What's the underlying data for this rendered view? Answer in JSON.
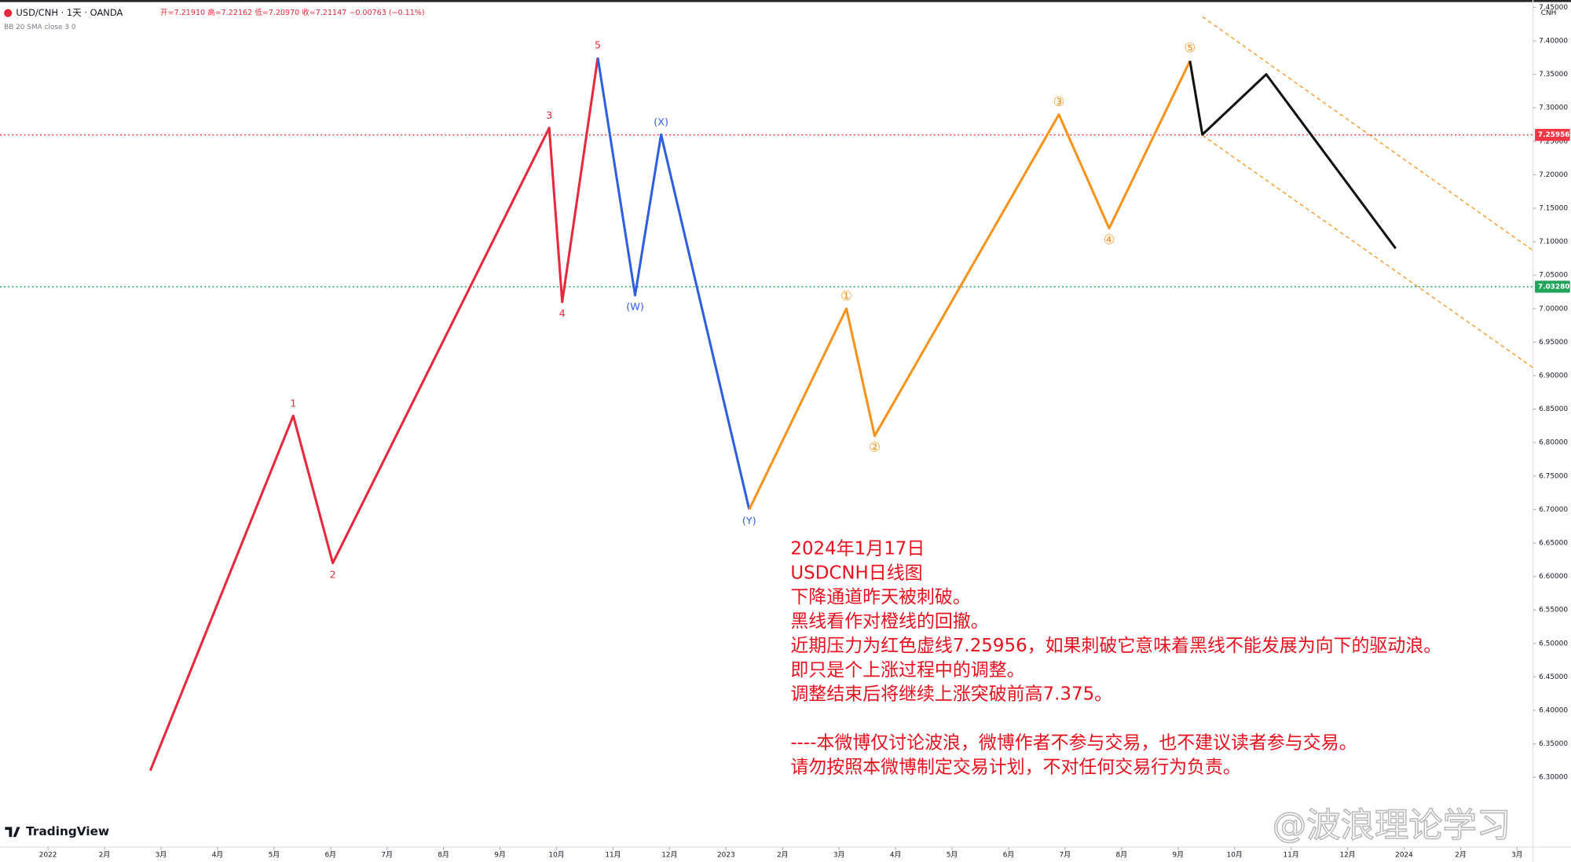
{
  "chart_data": {
    "type": "line",
    "header": "USD/CNH · 1天 · OANDA",
    "ohlc_text": "开=7.21910 高=7.22162 低=7.20970 收=7.21147 −0.00763 (−0.11%)",
    "indicator": "BB 20 SMA close 3 0",
    "y_axis_label": "CNH",
    "xlim": [
      -0.85,
      26.28
    ],
    "xticks": [
      {
        "value": 0,
        "label": "2022"
      },
      {
        "value": 1,
        "label": "2月"
      },
      {
        "value": 2,
        "label": "3月"
      },
      {
        "value": 3,
        "label": "4月"
      },
      {
        "value": 4,
        "label": "5月"
      },
      {
        "value": 5,
        "label": "6月"
      },
      {
        "value": 6,
        "label": "7月"
      },
      {
        "value": 7,
        "label": "8月"
      },
      {
        "value": 8,
        "label": "9月"
      },
      {
        "value": 9,
        "label": "10月"
      },
      {
        "value": 10,
        "label": "11月"
      },
      {
        "value": 11,
        "label": "12月"
      },
      {
        "value": 12,
        "label": "2023"
      },
      {
        "value": 13,
        "label": "2月"
      },
      {
        "value": 14,
        "label": "3月"
      },
      {
        "value": 15,
        "label": "4月"
      },
      {
        "value": 16,
        "label": "5月"
      },
      {
        "value": 17,
        "label": "6月"
      },
      {
        "value": 18,
        "label": "7月"
      },
      {
        "value": 19,
        "label": "8月"
      },
      {
        "value": 20,
        "label": "9月"
      },
      {
        "value": 21,
        "label": "10月"
      },
      {
        "value": 22,
        "label": "11月"
      },
      {
        "value": 23,
        "label": "12月"
      },
      {
        "value": 24,
        "label": "2024"
      },
      {
        "value": 25,
        "label": "2月"
      },
      {
        "value": 26,
        "label": "3月"
      }
    ],
    "ylim": [
      6.196,
      7.461
    ],
    "yticks": [
      {
        "value": 6.3,
        "label": "6.30000"
      },
      {
        "value": 6.35,
        "label": "6.35000"
      },
      {
        "value": 6.4,
        "label": "6.40000"
      },
      {
        "value": 6.45,
        "label": "6.45000"
      },
      {
        "value": 6.5,
        "label": "6.50000"
      },
      {
        "value": 6.55,
        "label": "6.55000"
      },
      {
        "value": 6.6,
        "label": "6.60000"
      },
      {
        "value": 6.65,
        "label": "6.65000"
      },
      {
        "value": 6.7,
        "label": "6.70000"
      },
      {
        "value": 6.75,
        "label": "6.75000"
      },
      {
        "value": 6.8,
        "label": "6.80000"
      },
      {
        "value": 6.85,
        "label": "6.85000"
      },
      {
        "value": 6.9,
        "label": "6.90000"
      },
      {
        "value": 6.95,
        "label": "6.95000"
      },
      {
        "value": 7.0,
        "label": "7.00000"
      },
      {
        "value": 7.05,
        "label": "7.05000"
      },
      {
        "value": 7.1,
        "label": "7.10000"
      },
      {
        "value": 7.15,
        "label": "7.15000"
      },
      {
        "value": 7.2,
        "label": "7.20000"
      },
      {
        "value": 7.25,
        "label": "7.25000"
      },
      {
        "value": 7.3,
        "label": "7.30000"
      },
      {
        "value": 7.35,
        "label": "7.35000"
      },
      {
        "value": 7.4,
        "label": "7.40000"
      },
      {
        "value": 7.45,
        "label": "7.45000"
      }
    ],
    "levels": [
      {
        "value": 7.25956,
        "label": "7.25956",
        "color": "#f23645"
      },
      {
        "value": 7.0328,
        "label": "7.03280",
        "color": "#22a55b"
      }
    ],
    "series": [
      {
        "color": "#e8283c",
        "x": [
          1.81,
          4.34,
          5.04,
          8.87,
          9.1,
          9.73
        ],
        "values": [
          6.31,
          6.84,
          6.62,
          7.27,
          7.01,
          7.375
        ],
        "point_labels": [
          null,
          "1",
          "2",
          "3",
          "4",
          "5"
        ]
      },
      {
        "color": "#2f5fe0",
        "x": [
          9.73,
          10.39,
          10.85,
          12.41
        ],
        "values": [
          7.375,
          7.02,
          7.26,
          6.7
        ],
        "point_labels": [
          null,
          "(W)",
          "(X)",
          "(Y)"
        ]
      },
      {
        "color": "#f7931a",
        "x": [
          12.41,
          14.13,
          14.63,
          17.89,
          18.78,
          20.21
        ],
        "values": [
          6.7,
          7.0,
          6.81,
          7.29,
          7.12,
          7.37
        ],
        "point_labels": [
          null,
          "①",
          "②",
          "③",
          "④",
          "⑤"
        ]
      },
      {
        "color": "#111111",
        "x": [
          20.21,
          20.43,
          21.56,
          23.85
        ],
        "values": [
          7.37,
          7.26,
          7.35,
          7.09
        ]
      }
    ],
    "channels": [
      {
        "color": "#f7931a",
        "x": [
          20.43,
          26.28
        ],
        "values": [
          7.436,
          7.087
        ]
      },
      {
        "color": "#f7931a",
        "x": [
          20.43,
          26.28
        ],
        "values": [
          7.259,
          6.912
        ]
      }
    ],
    "annotation": [
      "2024年1月17日",
      "USDCNH日线图",
      "下降通道昨天被刺破。",
      "黑线看作对橙线的回撤。",
      "近期压力为红色虚线7.25956，如果刺破它意味着黑线不能发展为向下的驱动浪。",
      "即只是个上涨过程中的调整。",
      "调整结束后将继续上涨突破前高7.375。",
      "----本微博仅讨论波浪，微博作者不参与交易，也不建议读者参与交易。",
      "请勿按照本微博制定交易计划，不对任何交易行为负责。"
    ],
    "watermark": "@波浪理论学习",
    "brand": "TradingView"
  }
}
